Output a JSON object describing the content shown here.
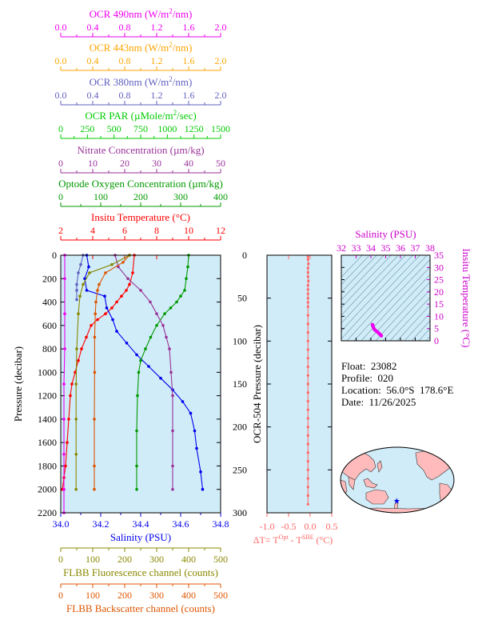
{
  "colors": {
    "ocr490": "#ee00ee",
    "ocr443": "#ffa500",
    "ocr380": "#6060c0",
    "par": "#00cc00",
    "nitrate": "#993399",
    "oxygen": "#009900",
    "temperature": "#ff0000",
    "salinity": "#0000ee",
    "fluorescence": "#888800",
    "backscatter": "#dd5500",
    "delta": "#ff6666",
    "plot_bg": "#d0ecf8",
    "land": "#ffbbbb",
    "ocean": "#d0ecf8"
  },
  "chart_data": [
    {
      "type": "line",
      "title": "",
      "ylabel": "Pressure (decibar)",
      "ylim": [
        2200,
        0
      ],
      "yticks": [
        "0",
        "200",
        "400",
        "600",
        "800",
        "1000",
        "1200",
        "1400",
        "1600",
        "1800",
        "2000",
        "2200"
      ],
      "axes": [
        {
          "key": "ocr490",
          "label_pre": "OCR 490nm (W/m",
          "label_sup": "2",
          "label_post": "/nm)",
          "range": [
            0,
            2
          ],
          "ticks": [
            "0.0",
            "0.4",
            "0.8",
            "1.2",
            "1.6",
            "2.0"
          ]
        },
        {
          "key": "ocr443",
          "label_pre": "OCR 443nm (W/m",
          "label_sup": "2",
          "label_post": "/nm)",
          "range": [
            0,
            2
          ],
          "ticks": [
            "0.0",
            "0.4",
            "0.8",
            "1.2",
            "1.6",
            "2.0"
          ]
        },
        {
          "key": "ocr380",
          "label_pre": "OCR 380nm (W/m",
          "label_sup": "2",
          "label_post": "/nm)",
          "range": [
            0,
            2
          ],
          "ticks": [
            "0.0",
            "0.4",
            "0.8",
            "1.2",
            "1.6",
            "2.0"
          ]
        },
        {
          "key": "par",
          "label_pre": "OCR PAR (µMole/m",
          "label_sup": "2",
          "label_post": "/sec)",
          "range": [
            0,
            1500
          ],
          "ticks": [
            "0",
            "250",
            "500",
            "750",
            "1000",
            "1250",
            "1500"
          ]
        },
        {
          "key": "nitrate",
          "label_pre": "Nitrate Concentration (µm/kg)",
          "label_sup": "",
          "label_post": "",
          "range": [
            0,
            50
          ],
          "ticks": [
            "0",
            "10",
            "20",
            "30",
            "40",
            "50"
          ]
        },
        {
          "key": "oxygen",
          "label_pre": "Optode Oxygen Concentration (µm/kg)",
          "label_sup": "",
          "label_post": "",
          "range": [
            0,
            400
          ],
          "ticks": [
            "0",
            "100",
            "200",
            "300",
            "400"
          ]
        },
        {
          "key": "temperature",
          "label_pre": "Insitu Temperature (°C)",
          "label_sup": "",
          "label_post": "",
          "range": [
            2,
            12
          ],
          "ticks": [
            "2",
            "4",
            "6",
            "8",
            "10",
            "12"
          ]
        }
      ],
      "bottom_axes": [
        {
          "key": "salinity",
          "label": "Salinity (PSU)",
          "range": [
            34.0,
            34.8
          ],
          "ticks": [
            "34.0",
            "34.2",
            "34.4",
            "34.6",
            "34.8"
          ]
        },
        {
          "key": "fluorescence",
          "label": "FLBB Fluorescence channel (counts)",
          "range": [
            0,
            500
          ],
          "ticks": [
            "0",
            "100",
            "200",
            "300",
            "400",
            "500"
          ]
        },
        {
          "key": "backscatter",
          "label": "FLBB Backscatter channel (counts)",
          "range": [
            0,
            500
          ],
          "ticks": [
            "0",
            "100",
            "200",
            "300",
            "400",
            "500"
          ]
        }
      ],
      "series": [
        {
          "key": "temperature",
          "x": [
            6.6,
            6.5,
            6.3,
            6.1,
            5.8,
            5.5,
            5.2,
            4.8,
            4.3,
            3.9,
            3.6,
            3.3,
            3.1,
            2.9,
            2.7,
            2.6,
            2.5,
            2.4,
            2.3,
            2.2,
            2.1
          ],
          "y": [
            0,
            150,
            250,
            300,
            350,
            400,
            450,
            500,
            550,
            600,
            700,
            800,
            900,
            1000,
            1100,
            1200,
            1400,
            1600,
            1800,
            1900,
            2000
          ]
        },
        {
          "key": "salinity",
          "x": [
            34.13,
            34.14,
            34.12,
            34.13,
            34.22,
            34.23,
            34.26,
            34.28,
            34.33,
            34.38,
            34.44,
            34.5,
            34.56,
            34.61,
            34.65,
            34.67,
            34.68,
            34.7,
            34.71
          ],
          "y": [
            0,
            100,
            200,
            300,
            350,
            450,
            550,
            650,
            750,
            850,
            950,
            1050,
            1150,
            1250,
            1350,
            1500,
            1650,
            1850,
            2000
          ]
        },
        {
          "key": "oxygen",
          "x": [
            320,
            318,
            314,
            310,
            300,
            290,
            275,
            260,
            240,
            225,
            212,
            200,
            195,
            192,
            190,
            190,
            190
          ],
          "y": [
            0,
            100,
            200,
            300,
            350,
            400,
            450,
            500,
            600,
            700,
            800,
            900,
            1000,
            1200,
            1500,
            1800,
            2000
          ]
        },
        {
          "key": "nitrate",
          "x": [
            17,
            18,
            21,
            25,
            28,
            30,
            32,
            33,
            34,
            34.5,
            35,
            35,
            35,
            35
          ],
          "y": [
            0,
            100,
            200,
            300,
            400,
            500,
            600,
            700,
            800,
            1000,
            1200,
            1500,
            1800,
            2000
          ]
        },
        {
          "key": "backscatter",
          "x": [
            215,
            195,
            140,
            120,
            115,
            110,
            108,
            106,
            106,
            105,
            105,
            105
          ],
          "y": [
            0,
            60,
            150,
            250,
            300,
            400,
            500,
            700,
            1000,
            1400,
            1800,
            2000
          ]
        },
        {
          "key": "fluorescence",
          "x": [
            215,
            160,
            90,
            70,
            60,
            55,
            50,
            48,
            48,
            48,
            48
          ],
          "y": [
            0,
            80,
            150,
            250,
            350,
            500,
            800,
            1100,
            1400,
            1700,
            2000
          ]
        },
        {
          "key": "ocr490",
          "x": [
            0.05,
            0.05,
            0.05,
            0.05,
            0.04,
            0.04,
            0.04,
            0.04,
            0.04
          ],
          "y": [
            0,
            200,
            500,
            800,
            1100,
            1400,
            1700,
            2000,
            2200
          ]
        },
        {
          "key": "ocr380",
          "x": [
            0.28,
            0.25,
            0.22,
            0.2,
            0.2,
            0.2
          ],
          "y": [
            0,
            80,
            150,
            250,
            300,
            380
          ]
        }
      ]
    },
    {
      "type": "scatter",
      "title": "",
      "ylabel": "OCR-504 Pressure (decibar)",
      "xlabel_pre": "ΔT= T",
      "xlabel_sup1": "Opt",
      "xlabel_mid": " - T",
      "xlabel_sup2": "SBE",
      "xlabel_post": " (°C)",
      "xlim": [
        -1.0,
        0.5
      ],
      "ylim": [
        300,
        0
      ],
      "xticks": [
        "-1.0",
        "-0.5",
        "0.0",
        "0.5"
      ],
      "yticks": [
        "0",
        "50",
        "100",
        "150",
        "200",
        "250",
        "300"
      ],
      "series": [
        {
          "key": "delta",
          "x": [
            -0.05,
            -0.05,
            -0.04,
            -0.05,
            -0.05,
            -0.05,
            -0.04,
            -0.05,
            -0.05,
            -0.05,
            -0.05,
            -0.05,
            -0.05,
            -0.05,
            -0.05,
            -0.05,
            -0.05,
            -0.05,
            -0.05,
            -0.05,
            -0.05,
            -0.05,
            -0.05,
            -0.05,
            -0.05,
            -0.05,
            -0.05,
            -0.05,
            -0.05,
            -0.05,
            -0.05,
            -0.05,
            -0.05,
            -0.05,
            -0.05,
            -0.05
          ],
          "y": [
            2,
            5,
            10,
            15,
            20,
            25,
            30,
            35,
            40,
            45,
            50,
            55,
            60,
            70,
            80,
            90,
            100,
            110,
            120,
            130,
            140,
            150,
            160,
            170,
            180,
            190,
            200,
            210,
            220,
            230,
            240,
            250,
            260,
            270,
            280,
            290
          ]
        }
      ]
    },
    {
      "type": "scatter",
      "title": "",
      "xlabel": "Salinity (PSU)",
      "ylabel": "Insitu Temperature (°C)",
      "xlim": [
        32,
        38
      ],
      "ylim": [
        0,
        35
      ],
      "xticks": [
        "32",
        "33",
        "34",
        "35",
        "36",
        "37",
        "38"
      ],
      "yticks": [
        "0",
        "5",
        "10",
        "15",
        "20",
        "25",
        "30",
        "35"
      ],
      "series": [
        {
          "key": "ts",
          "x": [
            34.1,
            34.13,
            34.15,
            34.2,
            34.3,
            34.45,
            34.55,
            34.62,
            34.68,
            34.7
          ],
          "y": [
            6.6,
            6.3,
            5.8,
            5.0,
            4.3,
            3.6,
            3.0,
            2.6,
            2.3,
            2.1
          ]
        }
      ]
    }
  ],
  "info": {
    "float": "Float:  23082",
    "profile": "Profile:  020",
    "location": "Location:  56.0°S  178.6°E",
    "date": "Date:  11/26/2025"
  },
  "map": {
    "marker_lon": 178.6,
    "marker_lat": -56.0
  }
}
